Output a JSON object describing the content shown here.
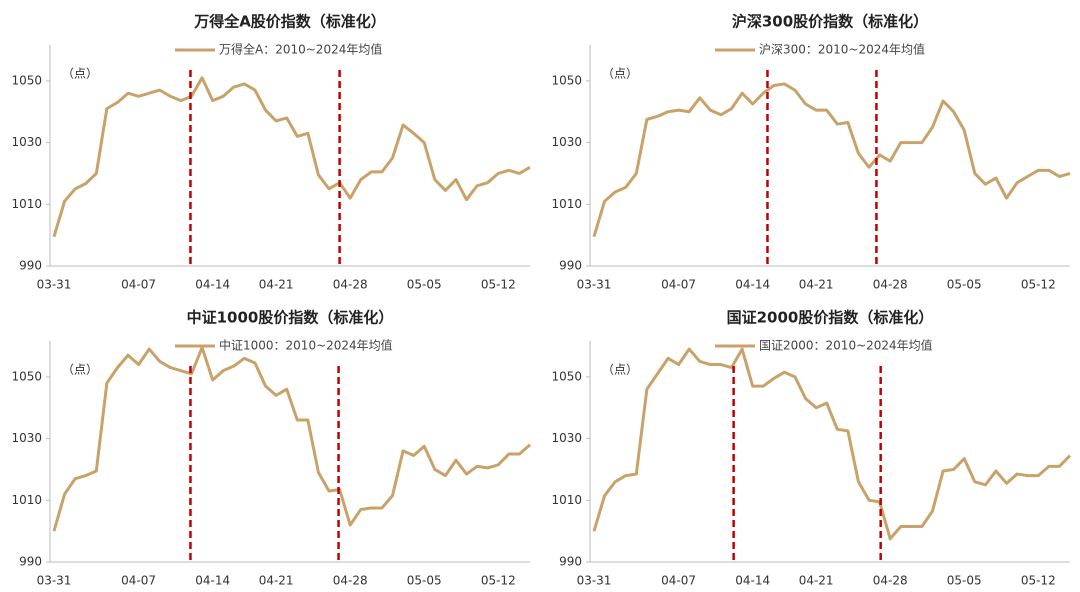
{
  "chart_data": [
    {
      "type": "line",
      "title": "万得全A股价指数（标准化）",
      "y_unit": "（点）",
      "categories": [
        "03-31",
        null,
        null,
        null,
        null,
        null,
        null,
        null,
        "04-07",
        null,
        null,
        null,
        null,
        null,
        null,
        "04-14",
        null,
        null,
        null,
        null,
        null,
        "04-21",
        null,
        null,
        null,
        null,
        null,
        null,
        "04-28",
        null,
        null,
        null,
        null,
        null,
        null,
        "05-05",
        null,
        null,
        null,
        null,
        null,
        null,
        "05-12",
        null,
        null,
        null
      ],
      "series": [
        {
          "name": "万得全A：2010~2024年均值",
          "color": "#c9a26a",
          "values": [
            999.5,
            1011,
            1015,
            1016.7,
            1020,
            1041,
            1043,
            1046,
            1045,
            1046,
            1047,
            1045,
            1043.6,
            1045,
            1051,
            1043.6,
            1045,
            1048,
            1049,
            1047,
            1040.5,
            1037,
            1038,
            1032,
            1033,
            1019.5,
            1015,
            1017,
            1012,
            1018,
            1020.5,
            1020.5,
            1025,
            1035.7,
            1033,
            1030,
            1018,
            1014.5,
            1018,
            1011.5,
            1016,
            1017,
            1020,
            1021,
            1020,
            1022
          ]
        }
      ],
      "vlines": [
        12.9,
        27
      ],
      "vline_color": "#c00000",
      "ylim": [
        990,
        1060
      ],
      "yticks": [
        990,
        1010,
        1030,
        1050
      ]
    },
    {
      "type": "line",
      "title": "沪深300股价指数（标准化）",
      "y_unit": "（点）",
      "categories": [
        "03-31",
        null,
        null,
        null,
        null,
        null,
        null,
        null,
        "04-07",
        null,
        null,
        null,
        null,
        null,
        null,
        "04-14",
        null,
        null,
        null,
        null,
        null,
        "04-21",
        null,
        null,
        null,
        null,
        null,
        null,
        "04-28",
        null,
        null,
        null,
        null,
        null,
        null,
        "05-05",
        null,
        null,
        null,
        null,
        null,
        null,
        "05-12",
        null,
        null,
        null
      ],
      "series": [
        {
          "name": "沪深300：2010~2024年均值",
          "color": "#c9a26a",
          "values": [
            999.5,
            1011,
            1014,
            1015.5,
            1020,
            1037.5,
            1038.5,
            1040,
            1040.5,
            1040,
            1044.5,
            1040.5,
            1039,
            1041,
            1046,
            1042.5,
            1046,
            1048.5,
            1049,
            1047,
            1042.5,
            1040.5,
            1040.5,
            1036,
            1036.5,
            1026.5,
            1022,
            1026,
            1024,
            1030,
            1030,
            1030,
            1035,
            1043.5,
            1040,
            1034,
            1020,
            1016.5,
            1018.5,
            1012,
            1017,
            1019,
            1021,
            1021,
            1019,
            1020
          ]
        }
      ],
      "vlines": [
        16.4,
        26.7
      ],
      "vline_color": "#c00000",
      "ylim": [
        990,
        1060
      ],
      "yticks": [
        990,
        1010,
        1030,
        1050
      ]
    },
    {
      "type": "line",
      "title": "中证1000股价指数（标准化）",
      "y_unit": "（点）",
      "categories": [
        "03-31",
        null,
        null,
        null,
        null,
        null,
        null,
        null,
        "04-07",
        null,
        null,
        null,
        null,
        null,
        null,
        "04-14",
        null,
        null,
        null,
        null,
        null,
        "04-21",
        null,
        null,
        null,
        null,
        null,
        null,
        "04-28",
        null,
        null,
        null,
        null,
        null,
        null,
        "05-05",
        null,
        null,
        null,
        null,
        null,
        null,
        "05-12",
        null,
        null,
        null
      ],
      "series": [
        {
          "name": "中证1000：2010~2024年均值",
          "color": "#c9a26a",
          "values": [
            1000,
            1012,
            1017,
            1018,
            1019.5,
            1048,
            1053,
            1057,
            1054,
            1059,
            1055,
            1053,
            1052,
            1051,
            1059.5,
            1049,
            1052,
            1053.5,
            1056,
            1054.5,
            1047,
            1044,
            1046,
            1036,
            1036,
            1019,
            1013,
            1013.5,
            1002,
            1007,
            1007.5,
            1007.5,
            1011.5,
            1026,
            1024.5,
            1027.5,
            1020,
            1018,
            1023,
            1018.5,
            1021,
            1020.5,
            1021.5,
            1025,
            1025,
            1028
          ]
        }
      ],
      "vlines": [
        12.9,
        26.9
      ],
      "vline_color": "#c00000",
      "ylim": [
        990,
        1060
      ],
      "yticks": [
        990,
        1010,
        1030,
        1050
      ]
    },
    {
      "type": "line",
      "title": "国证2000股价指数（标准化）",
      "y_unit": "（点）",
      "categories": [
        "03-31",
        null,
        null,
        null,
        null,
        null,
        null,
        null,
        "04-07",
        null,
        null,
        null,
        null,
        null,
        null,
        "04-14",
        null,
        null,
        null,
        null,
        null,
        "04-21",
        null,
        null,
        null,
        null,
        null,
        null,
        "04-28",
        null,
        null,
        null,
        null,
        null,
        null,
        "05-05",
        null,
        null,
        null,
        null,
        null,
        null,
        "05-12",
        null,
        null,
        null
      ],
      "series": [
        {
          "name": "国证2000：2010~2024年均值",
          "color": "#c9a26a",
          "values": [
            1000,
            1011.5,
            1016,
            1018,
            1018.5,
            1046,
            1051,
            1056,
            1054,
            1059,
            1055,
            1054,
            1054,
            1053,
            1059,
            1047,
            1047,
            1049.5,
            1051.5,
            1050,
            1043,
            1040,
            1041.5,
            1033,
            1032.5,
            1016,
            1010,
            1009.5,
            997.5,
            1001.5,
            1001.5,
            1001.5,
            1006.5,
            1019.5,
            1020,
            1023.5,
            1016,
            1015,
            1019.5,
            1015.5,
            1018.5,
            1018,
            1018,
            1021,
            1021,
            1024.5
          ]
        }
      ],
      "vlines": [
        13.2,
        27.1
      ],
      "vline_color": "#c00000",
      "ylim": [
        990,
        1060
      ],
      "yticks": [
        990,
        1010,
        1030,
        1050
      ]
    }
  ]
}
